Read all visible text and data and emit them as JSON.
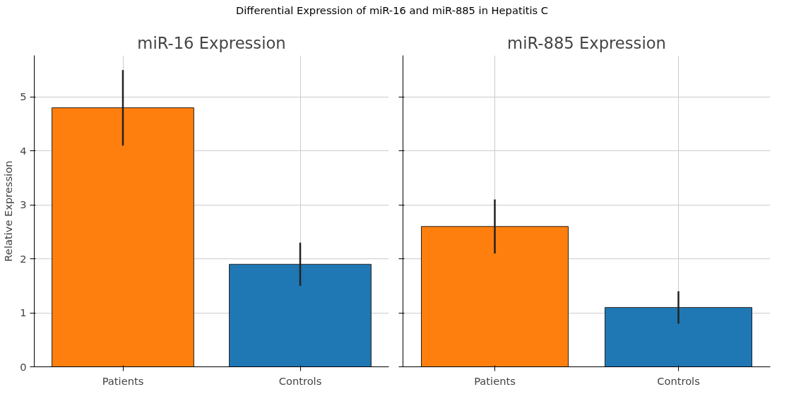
{
  "chart_data": [
    {
      "type": "bar",
      "title": "miR-16 Expression",
      "ylabel": "Relative Expression",
      "annotations": [
        "Differential Expression of miR-16 and miR-885 in Hepatitis C"
      ],
      "categories": [
        "Patients",
        "Controls"
      ],
      "values": [
        4.8,
        1.9
      ],
      "errors": [
        0.7,
        0.4
      ],
      "colors": [
        "#ff7f0e",
        "#1f77b4"
      ],
      "ylim": [
        0,
        5.77
      ],
      "yticks": [
        0,
        1,
        2,
        3,
        4,
        5
      ],
      "grid": true
    },
    {
      "type": "bar",
      "title": "miR-885 Expression",
      "categories": [
        "Patients",
        "Controls"
      ],
      "values": [
        2.6,
        1.1
      ],
      "errors": [
        0.5,
        0.3
      ],
      "colors": [
        "#ff7f0e",
        "#1f77b4"
      ],
      "ylim": [
        0,
        5.77
      ],
      "yticks": [
        0,
        1,
        2,
        3,
        4,
        5
      ],
      "grid": true,
      "tick_labels": "x"
    }
  ]
}
